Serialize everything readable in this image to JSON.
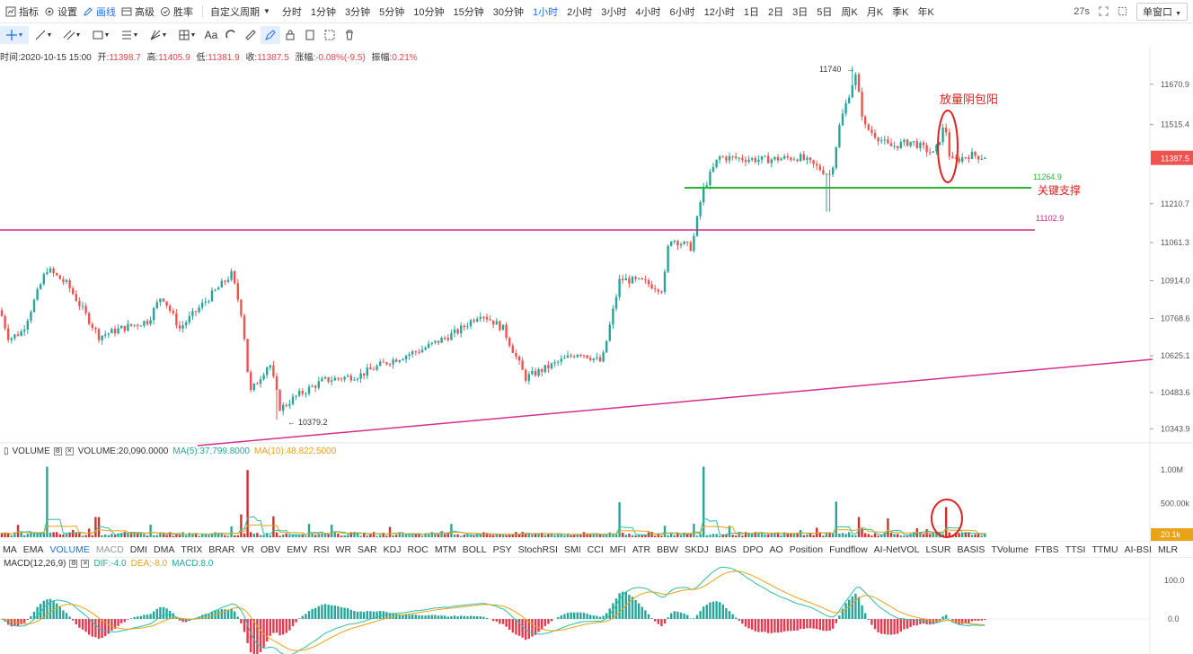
{
  "toolbar": {
    "items": [
      {
        "label": "指标",
        "icon": "indicator-icon"
      },
      {
        "label": "设置",
        "icon": "gear-icon"
      },
      {
        "label": "画线",
        "icon": "pen-icon",
        "active": true
      },
      {
        "label": "高级",
        "icon": "chart-icon"
      },
      {
        "label": "胜率",
        "icon": "target-icon"
      }
    ],
    "custom_period": "自定义周期",
    "periods": [
      "分时",
      "1分钟",
      "3分钟",
      "5分钟",
      "10分钟",
      "15分钟",
      "30分钟",
      "1小时",
      "2小时",
      "3小时",
      "4小时",
      "6小时",
      "12小时",
      "1日",
      "2日",
      "3日",
      "5日",
      "周K",
      "月K",
      "季K",
      "年K"
    ],
    "active_period": "1小时",
    "countdown": "27s",
    "window_mode": "单窗口"
  },
  "info": {
    "time_label": "时间:",
    "time": "2020-10-15 15:00",
    "open_label": "开:",
    "open": "11398.7",
    "high_label": "高:",
    "high": "11405.9",
    "low_label": "低:",
    "low": "11381.9",
    "close_label": "收:",
    "close": "11387.5",
    "change_label": "涨幅:",
    "change": "-0.08%(-9.5)",
    "amp_label": "振幅:",
    "amp": "0.21%"
  },
  "volume_header": {
    "name": "VOLUME",
    "value": "VOLUME:20,090.0000",
    "ma5": "MA(5):37,799.8000",
    "ma10": "MA(10):48,822.5000"
  },
  "macd_header": {
    "name": "MACD(12,26,9)",
    "dif": "DIF:-4.0",
    "dea": "DEA:-8.0",
    "macd": "MACD:8.0"
  },
  "indicator_tabs": [
    "MA",
    "EMA",
    "VOLUME",
    "MACD",
    "DMI",
    "DMA",
    "TRIX",
    "BRAR",
    "VR",
    "OBV",
    "EMV",
    "RSI",
    "WR",
    "SAR",
    "KDJ",
    "ROC",
    "MTM",
    "BOLL",
    "PSY",
    "StochRSI",
    "SMI",
    "CCI",
    "MFI",
    "ATR",
    "BBW",
    "SKDJ",
    "BIAS",
    "DPO",
    "AO",
    "Position",
    "Fundflow",
    "AI-NetVOL",
    "LSUR",
    "BASIS",
    "TVolume",
    "FTBS",
    "TTSI",
    "TTMU",
    "AI-BSI",
    "MLR"
  ],
  "active_tab": "VOLUME",
  "dim_tab": "MACD",
  "price_axis": [
    "11670.9",
    "11515.4",
    "11387.5",
    "11210.7",
    "11061.3",
    "10914.0",
    "10768.6",
    "10625.1",
    "10483.6",
    "10343.9"
  ],
  "last_price": "11387.5",
  "volume_axis": [
    "1.00M",
    "500.00k"
  ],
  "volume_last": "20.1k",
  "macd_axis": [
    "100.0",
    "0.0"
  ],
  "annotations": {
    "high_label": "11740",
    "low_label": "10379.2",
    "support_price": "11264.9",
    "support_text": "关键支撑",
    "resistance_price": "11102.9",
    "pattern_text": "放量阴包阳"
  },
  "colors": {
    "up": "#26a69a",
    "down": "#ef5350",
    "accent": "#1e6fe8",
    "support": "#2db52d",
    "resistance": "#d42f8e",
    "note": "#e02020"
  },
  "chart_data": {
    "type": "candlestick",
    "keypoints": [
      [
        0,
        10800
      ],
      [
        10,
        10690
      ],
      [
        25,
        10720
      ],
      [
        52,
        10960
      ],
      [
        75,
        10900
      ],
      [
        110,
        10700
      ],
      [
        135,
        10730
      ],
      [
        165,
        10760
      ],
      [
        180,
        10860
      ],
      [
        200,
        10730
      ],
      [
        230,
        10840
      ],
      [
        258,
        10940
      ],
      [
        270,
        10770
      ],
      [
        278,
        10480
      ],
      [
        300,
        10600
      ],
      [
        312,
        10420
      ],
      [
        330,
        10470
      ],
      [
        360,
        10530
      ],
      [
        400,
        10550
      ],
      [
        430,
        10600
      ],
      [
        470,
        10650
      ],
      [
        510,
        10720
      ],
      [
        535,
        10790
      ],
      [
        560,
        10730
      ],
      [
        585,
        10540
      ],
      [
        615,
        10590
      ],
      [
        645,
        10640
      ],
      [
        670,
        10600
      ],
      [
        690,
        10920
      ],
      [
        715,
        10910
      ],
      [
        738,
        10880
      ],
      [
        745,
        11080
      ],
      [
        770,
        11040
      ],
      [
        782,
        11260
      ],
      [
        800,
        11390
      ],
      [
        850,
        11380
      ],
      [
        890,
        11390
      ],
      [
        925,
        11320
      ],
      [
        935,
        11520
      ],
      [
        952,
        11710
      ],
      [
        962,
        11510
      ],
      [
        990,
        11430
      ],
      [
        1015,
        11450
      ],
      [
        1040,
        11400
      ],
      [
        1052,
        11520
      ],
      [
        1058,
        11370
      ],
      [
        1080,
        11400
      ],
      [
        1098,
        11387
      ]
    ],
    "price_range": [
      10300,
      11760
    ]
  }
}
